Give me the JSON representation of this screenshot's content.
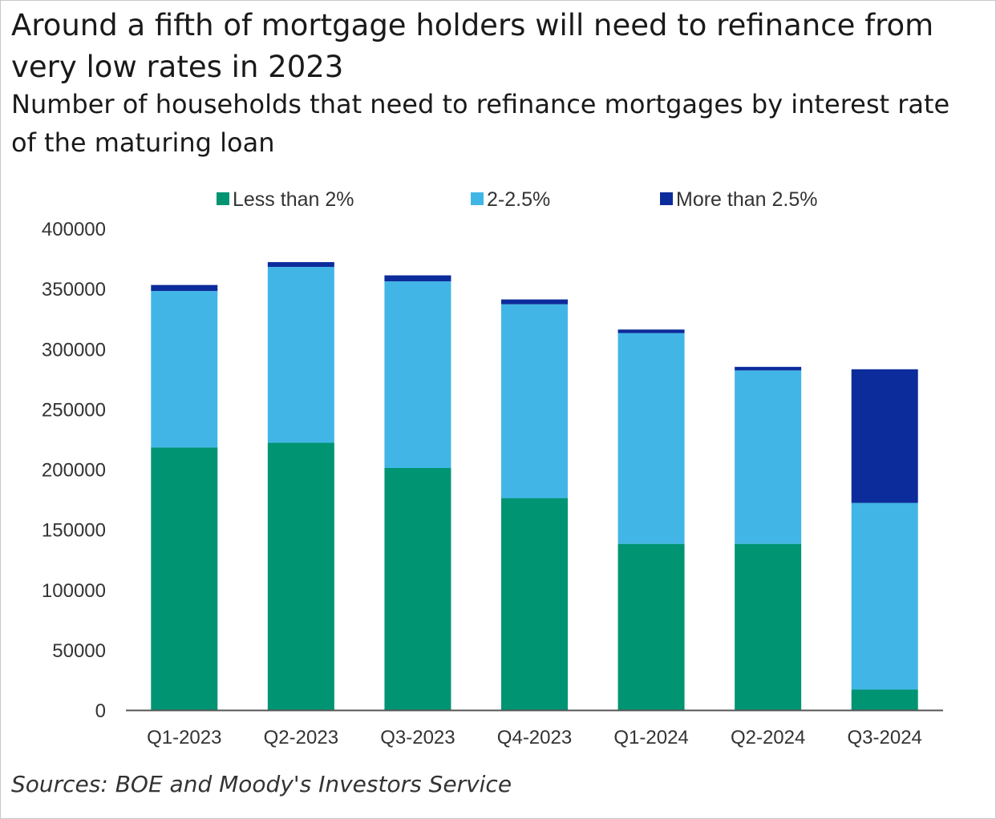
{
  "chart_data": {
    "type": "bar",
    "stacked": true,
    "title": "Around a fifth of mortgage holders will need to refinance from very low rates in 2023",
    "subtitle": "Number of households that need to refinance mortgages by interest rate of the maturing loan",
    "source": "Sources: BOE and Moody's Investors Service",
    "categories": [
      "Q1-2023",
      "Q2-2023",
      "Q3-2023",
      "Q4-2023",
      "Q1-2024",
      "Q2-2024",
      "Q3-2024"
    ],
    "series": [
      {
        "name": "Less than 2%",
        "color": "#009473",
        "values": [
          218000,
          222000,
          201000,
          176000,
          138000,
          138000,
          17000
        ]
      },
      {
        "name": "2-2.5%",
        "color": "#41b6e6",
        "values": [
          130000,
          146000,
          155000,
          161000,
          175000,
          144000,
          155000
        ]
      },
      {
        "name": "More than 2.5%",
        "color": "#0c2c9b",
        "values": [
          5000,
          4000,
          5000,
          4000,
          3000,
          3000,
          111000
        ]
      }
    ],
    "yticks": [
      "0",
      "50000",
      "100000",
      "150000",
      "200000",
      "250000",
      "300000",
      "350000",
      "400000"
    ],
    "ylim": [
      0,
      400000
    ],
    "legend_position": "top",
    "grid": false
  }
}
